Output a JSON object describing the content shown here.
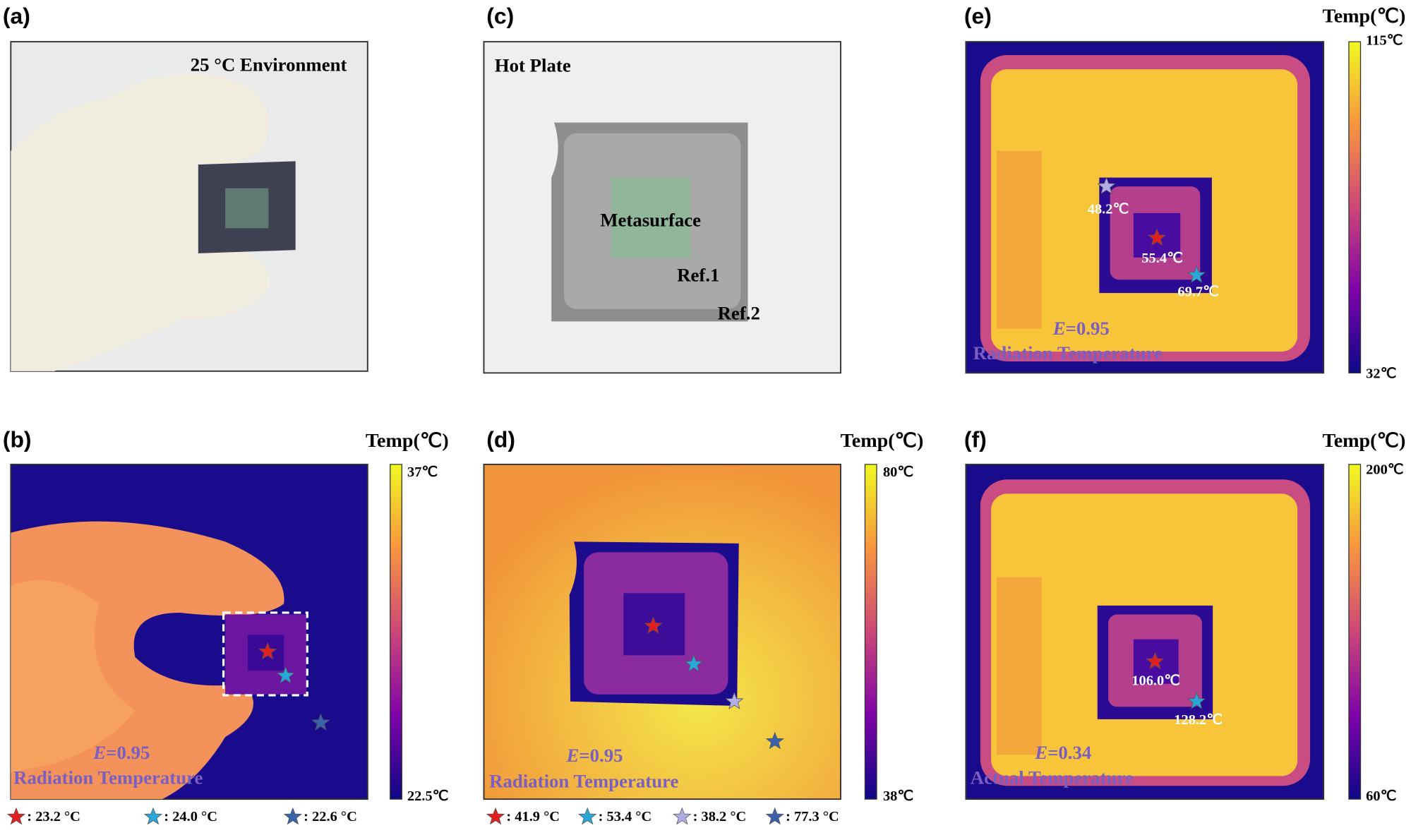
{
  "panels": [
    {
      "label": "(a)",
      "caption": "25 °C Environment"
    },
    {
      "label": "(b)",
      "colorbar": {
        "title": "Temp(℃)",
        "max": "37℃",
        "min": "22.5℃"
      },
      "emissivity": {
        "symbol": "E",
        "value": "=0.95"
      },
      "mode": "Radiation Temperature",
      "legend": [
        ": 23.2 °C",
        ": 24.0 °C",
        ": 22.6 °C"
      ]
    },
    {
      "label": "(c)",
      "caption": "Hot Plate",
      "sample": "Metasurface",
      "refs": [
        "Ref.1",
        "Ref.2"
      ]
    },
    {
      "label": "(d)",
      "colorbar": {
        "title": "Temp(℃)",
        "max": "80℃",
        "min": "38℃"
      },
      "emissivity": {
        "symbol": "E",
        "value": "=0.95"
      },
      "mode": "Radiation Temperature",
      "legend": [
        ": 41.9 °C",
        ": 53.4 °C",
        ": 38.2 °C",
        ": 77.3 °C"
      ]
    },
    {
      "label": "(e)",
      "colorbar": {
        "title": "Temp(℃)",
        "max": "115℃",
        "min": "32℃"
      },
      "emissivity": {
        "symbol": "E",
        "value": "=0.95"
      },
      "mode": "Radiation Temperature",
      "points": [
        "48.2℃",
        "55.4℃",
        "69.7℃"
      ]
    },
    {
      "label": "(f)",
      "colorbar": {
        "title": "Temp(℃)",
        "max": "200℃",
        "min": "60℃"
      },
      "emissivity": {
        "symbol": "E",
        "value": "=0.34"
      },
      "mode": "Actual Temperature",
      "points": [
        "106.0℃",
        "128.2℃"
      ]
    }
  ]
}
